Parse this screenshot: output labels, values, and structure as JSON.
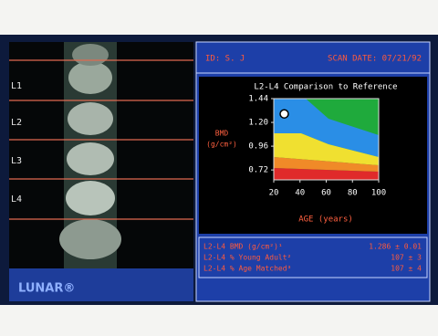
{
  "header": {
    "id": "ID: S. J",
    "scan_date": "SCAN DATE: 07/21/92"
  },
  "vertebrae": [
    "L1",
    "L2",
    "L3",
    "L4"
  ],
  "chart_data": {
    "type": "scatter",
    "title": "L2-L4 Comparison to Reference",
    "xlabel": "AGE (years)",
    "ylabel": [
      "BMD",
      "(g/cm²)"
    ],
    "x": [
      28
    ],
    "values": [
      1.286
    ],
    "color": "#ffffff",
    "xlim": [
      20,
      100
    ],
    "ylim": [
      0.62,
      1.44
    ],
    "xticks": [
      20,
      40,
      60,
      80,
      100
    ],
    "yticks": [
      1.44,
      {
        "value": 1.2,
        "label": "1.20"
      },
      0.96,
      0.72
    ]
  },
  "results": {
    "rows": [
      [
        "L2-L4 BMD (g/cm²)¹",
        "1.286 ± 0.01"
      ],
      [
        "L2-L4 % Young Adult²",
        "107 ± 3"
      ],
      [
        "L2-L4 % Age Matched³",
        "107 ± 4"
      ]
    ]
  },
  "brand": "LUNAR®"
}
